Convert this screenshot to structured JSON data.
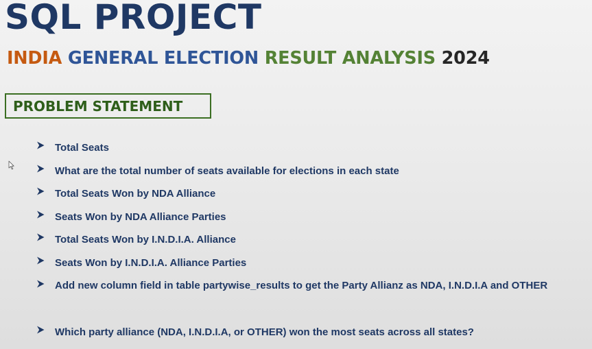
{
  "title": "SQL PROJECT",
  "subtitle": {
    "part1": "INDIA",
    "part2": "GENERAL ELECTION",
    "part3": "RESULT ANALYSIS",
    "part4": "2024"
  },
  "section_heading": "PROBLEM STATEMENT",
  "items": [
    "Total Seats",
    "What are the total number of seats available for elections in each state",
    "Total Seats Won by NDA Alliance",
    "Seats Won by NDA Alliance Parties",
    "Total Seats Won by I.N.D.I.A. Alliance",
    "Seats Won by I.N.D.I.A. Alliance Parties",
    "Add new column field in table partywise_results to get the Party Allianz as NDA, I.N.D.I.A and OTHER",
    "Which party alliance (NDA, I.N.D.I.A, or OTHER) won the most seats across all states?"
  ],
  "colors": {
    "title": "#1f3864",
    "india": "#c55a11",
    "general_election": "#2f5597",
    "result_analysis": "#548235",
    "year": "#262626",
    "heading_border": "#3b6e22",
    "heading_text": "#2e5e1a",
    "item_text": "#1f3864"
  },
  "icons": {
    "bullet": "arrowhead-bullet-icon",
    "pointer": "mouse-cursor-icon"
  }
}
